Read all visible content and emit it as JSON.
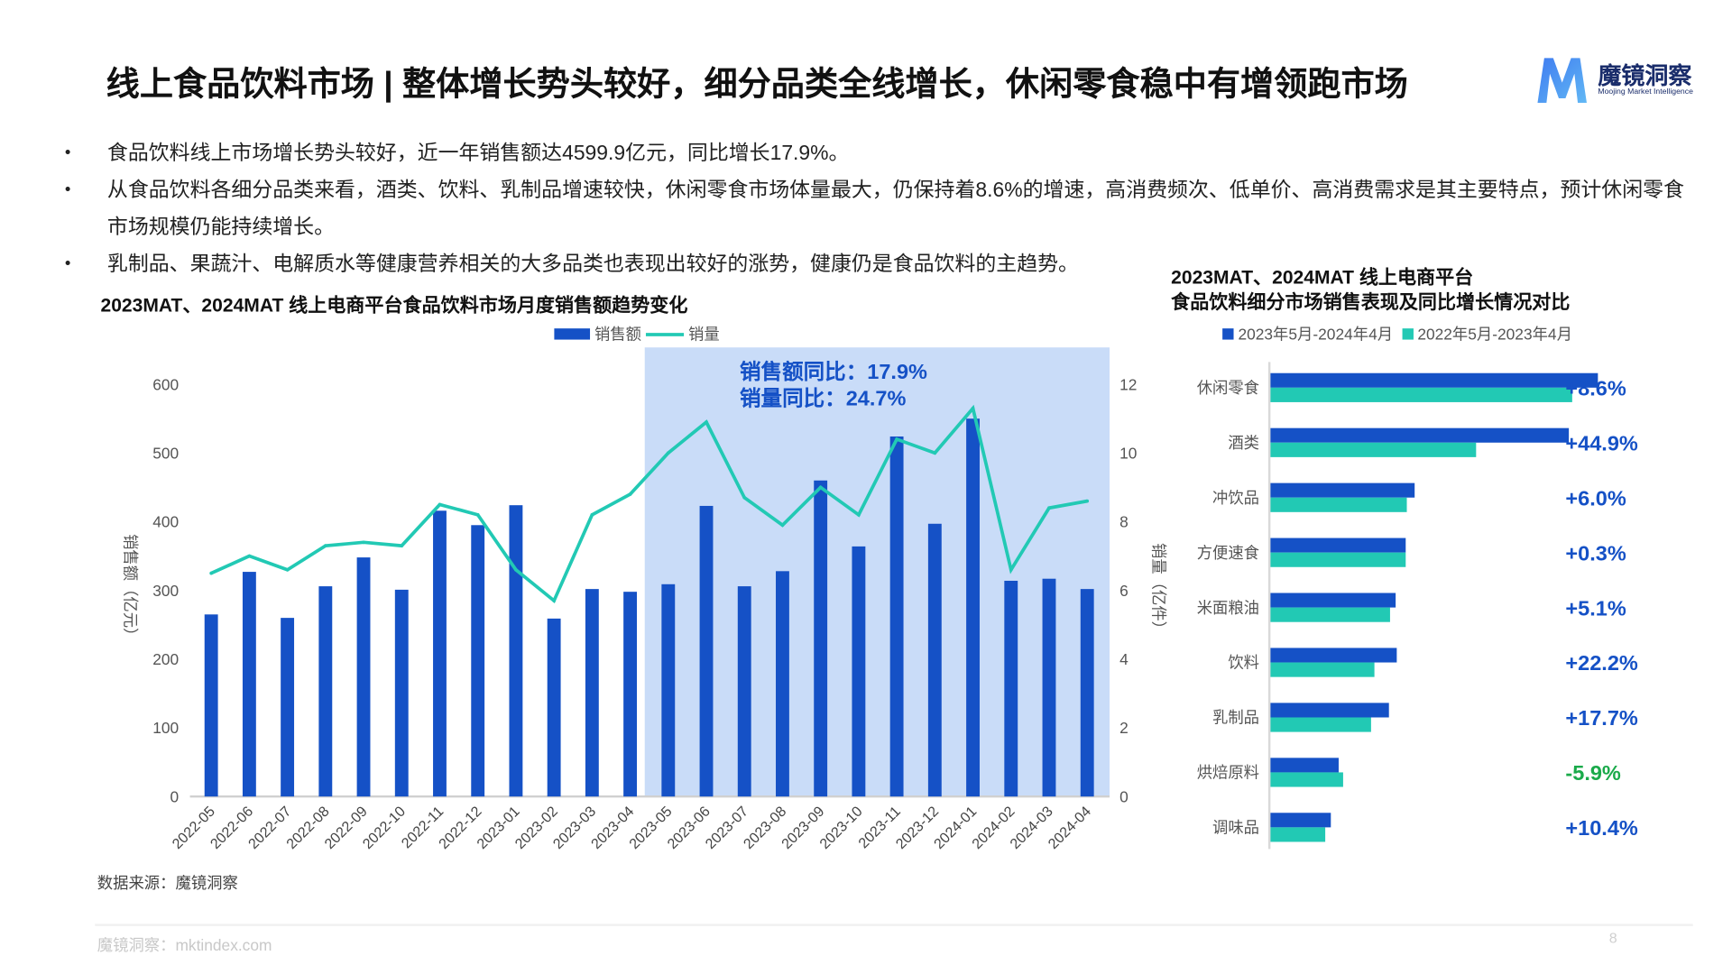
{
  "header": {
    "title": "线上食品饮料市场 | 整体增长势头较好，细分品类全线增长，休闲零食稳中有增领跑市场",
    "logo": {
      "name": "魔镜洞察",
      "subtitle": "Moojing Market Intelligence"
    }
  },
  "bullets": [
    "食品饮料线上市场增长势头较好，近一年销售额达4599.9亿元，同比增长17.9%。",
    "从食品饮料各细分品类来看，酒类、饮料、乳制品增速较快，休闲零食市场体量最大，仍保持着8.6%的增速，高消费频次、低单价、高消费需求是其主要特点，预计休闲零食市场规模仍能持续增长。",
    "乳制品、果蔬汁、电解质水等健康营养相关的大多品类也表现出较好的涨势，健康仍是食品饮料的主趋势。"
  ],
  "colors": {
    "bar": "#1551c6",
    "line": "#22c9b4",
    "highlight": "#c9dcf8",
    "annotation": "#1551c6",
    "negative": "#1aaa4a"
  },
  "chart_data": [
    {
      "type": "bar+line",
      "title": "2023MAT、2024MAT 线上电商平台食品饮料市场月度销售额趋势变化",
      "categories": [
        "2022-05",
        "2022-06",
        "2022-07",
        "2022-08",
        "2022-09",
        "2022-10",
        "2022-11",
        "2022-12",
        "2023-01",
        "2023-02",
        "2023-03",
        "2023-04",
        "2023-05",
        "2023-06",
        "2023-07",
        "2023-08",
        "2023-09",
        "2023-10",
        "2023-11",
        "2023-12",
        "2024-01",
        "2024-02",
        "2024-03",
        "2024-04"
      ],
      "series": [
        {
          "name": "销售额",
          "type": "bar",
          "axis": "left",
          "values": [
            265,
            327,
            260,
            306,
            348,
            301,
            416,
            395,
            424,
            259,
            302,
            298,
            309,
            423,
            306,
            328,
            460,
            364,
            524,
            397,
            550,
            314,
            317,
            302
          ]
        },
        {
          "name": "销量",
          "type": "line",
          "axis": "right",
          "values": [
            6.5,
            7.0,
            6.6,
            7.3,
            7.4,
            7.3,
            8.5,
            8.2,
            6.6,
            5.7,
            8.2,
            8.8,
            10.0,
            10.9,
            8.7,
            7.9,
            9.0,
            8.2,
            10.4,
            10.0,
            11.3,
            6.6,
            8.4,
            8.6
          ]
        }
      ],
      "ylabel": "销售额（亿元）",
      "ylim": [
        0,
        600
      ],
      "yticks": [
        "0",
        "100",
        "200",
        "300",
        "400",
        "500",
        "600"
      ],
      "y2label": "销量（亿件）",
      "y2lim": [
        0,
        12
      ],
      "y2ticks": [
        "0",
        "2",
        "4",
        "6",
        "8",
        "10",
        "12"
      ],
      "highlight_range": [
        "2023-05",
        "2024-04"
      ],
      "annotations": [
        "销售额同比：17.9%",
        "销量同比：24.7%"
      ],
      "legend": "top",
      "grid": false
    },
    {
      "type": "bar",
      "orientation": "horizontal",
      "title_lines": [
        "2023MAT、2024MAT 线上电商平台",
        "食品饮料细分市场销售表现及同比增长情况对比"
      ],
      "categories": [
        "休闲零食",
        "酒类",
        "冲饮品",
        "方便速食",
        "米面粮油",
        "饮料",
        "乳制品",
        "烘焙原料",
        "调味品"
      ],
      "series": [
        {
          "name": "2023年5月-2024年4月",
          "values": [
            293,
            267,
            129,
            121,
            112,
            113,
            106,
            61,
            54
          ]
        },
        {
          "name": "2022年5月-2023年4月",
          "values": [
            270,
            184,
            122,
            121,
            107,
            93,
            90,
            65,
            49
          ]
        }
      ],
      "growth_labels": [
        "+8.6%",
        "+44.9%",
        "+6.0%",
        "+0.3%",
        "+5.1%",
        "+22.2%",
        "+17.7%",
        "-5.9%",
        "+10.4%"
      ],
      "legend": "top",
      "grid": false
    }
  ],
  "source": "数据来源：魔镜洞察",
  "footer": {
    "site": "魔镜洞察：mktindex.com",
    "page": "8"
  }
}
